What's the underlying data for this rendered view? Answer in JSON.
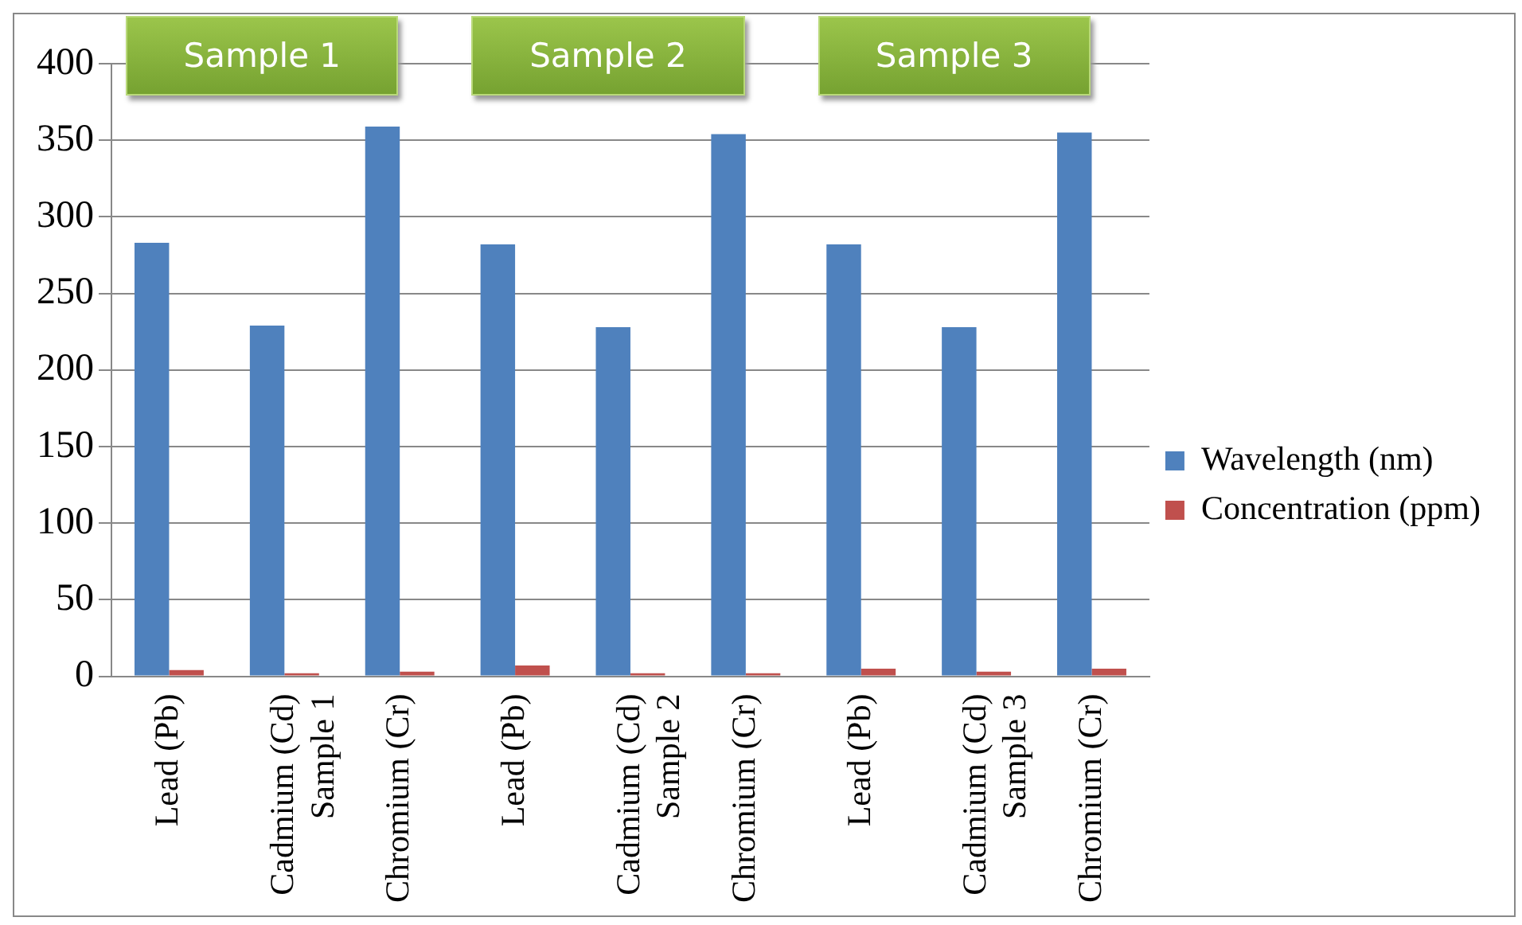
{
  "chart_data": {
    "type": "bar",
    "categories": [
      "Lead (Pb)",
      "Cadmium (Cd)\nSample 1",
      "Chromium (Cr)",
      "Lead (Pb)",
      "Cadmium (Cd)\nSample 2",
      "Chromium (Cr)",
      "Lead (Pb)",
      "Cadmium (Cd)\nSample 3",
      "Chromium (Cr)"
    ],
    "series": [
      {
        "name": "Wavelength (nm)",
        "color": "#4f81bd",
        "values": [
          283,
          229,
          359,
          282,
          228,
          354,
          282,
          228,
          355
        ]
      },
      {
        "name": "Concentration (ppm)",
        "color": "#c0504d",
        "values": [
          4,
          2,
          3,
          7,
          2,
          2,
          5,
          3,
          5
        ]
      }
    ],
    "ylim": [
      0,
      400
    ],
    "yticks": [
      0,
      50,
      100,
      150,
      200,
      250,
      300,
      350,
      400
    ],
    "grid": "y",
    "legend": "right",
    "annotations": [
      "Sample 1",
      "Sample 2",
      "Sample 3"
    ]
  }
}
